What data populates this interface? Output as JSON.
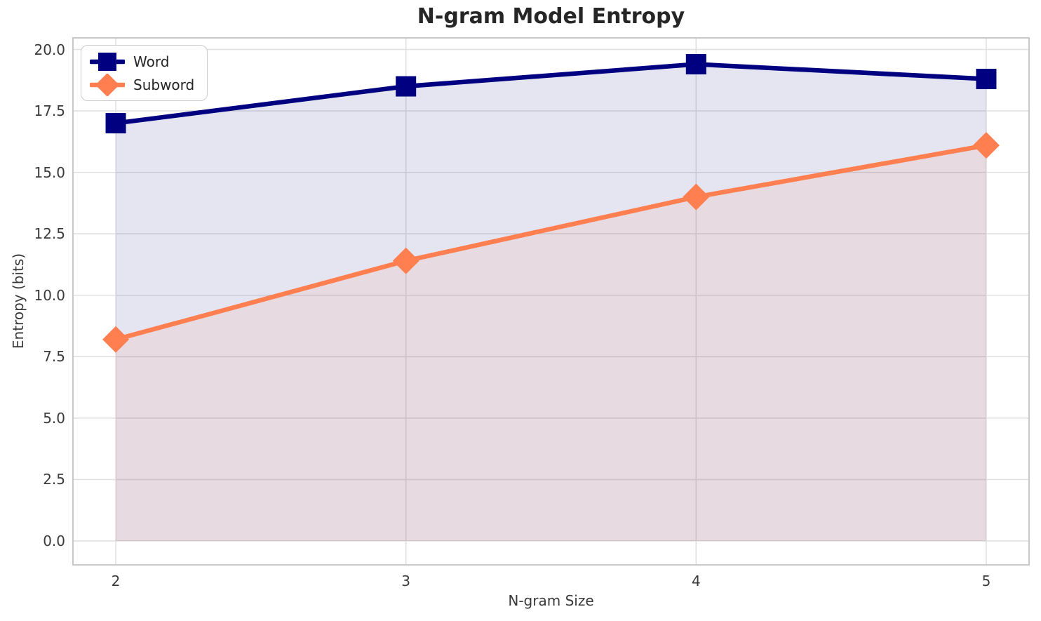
{
  "chart_data": {
    "type": "line",
    "title": "N-gram Model Entropy",
    "xlabel": "N-gram Size",
    "ylabel": "Entropy (bits)",
    "x": [
      2,
      3,
      4,
      5
    ],
    "xtick_labels": [
      "2",
      "3",
      "4",
      "5"
    ],
    "yticks": [
      0,
      2.5,
      5,
      7.5,
      10,
      12.5,
      15,
      17.5,
      20
    ],
    "ytick_labels": [
      "0.0",
      "2.5",
      "5.0",
      "7.5",
      "10.0",
      "12.5",
      "15.0",
      "17.5",
      "20.0"
    ],
    "xlim": [
      1.85,
      5.15
    ],
    "ylim": [
      -1.0,
      20.5
    ],
    "grid": true,
    "legend_position": "upper left",
    "series": [
      {
        "name": "Word",
        "marker": "square",
        "color": "#000080",
        "fill_opacity": 0.1,
        "values": [
          17.0,
          18.5,
          19.4,
          18.8
        ]
      },
      {
        "name": "Subword",
        "marker": "diamond",
        "color": "#FF7F50",
        "fill_opacity": 0.1,
        "values": [
          8.2,
          11.4,
          14.0,
          16.1
        ]
      }
    ]
  },
  "style": {
    "grid_color": "#e0e0e0",
    "spine_color": "#c9c9c9",
    "tick_color": "#3a3a3a",
    "title_color": "#262626",
    "background": "#ffffff",
    "line_width": 6.5
  }
}
